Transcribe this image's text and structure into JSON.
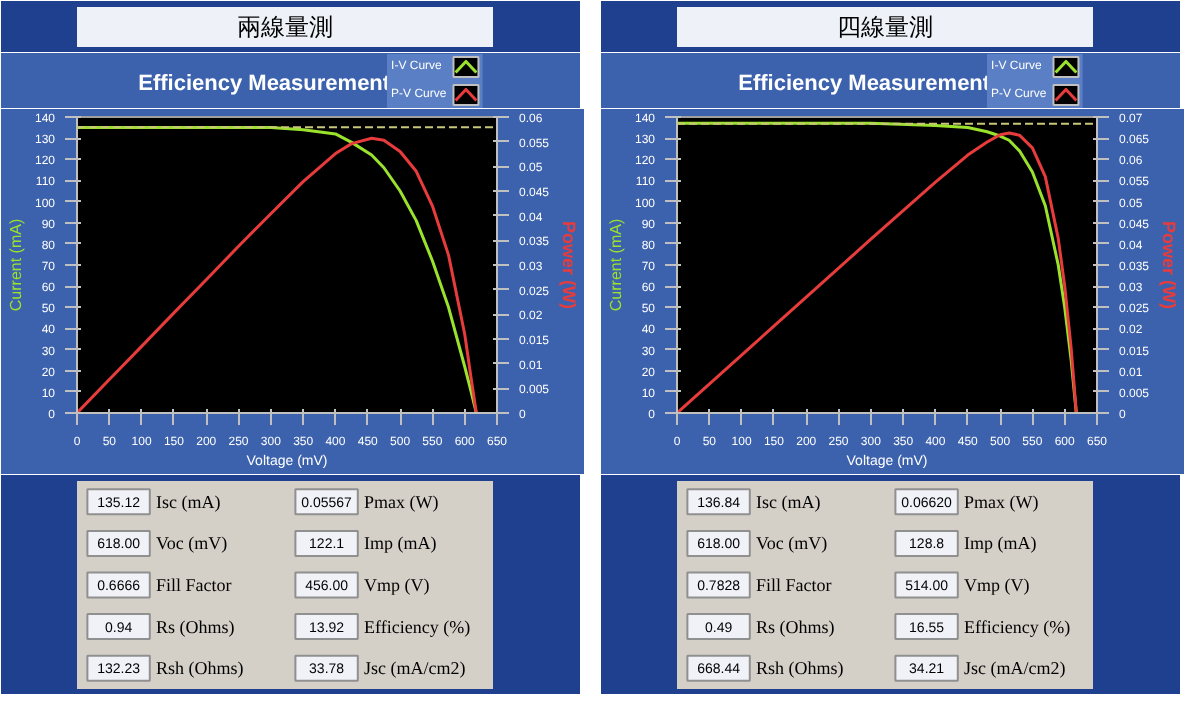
{
  "chart_data": [
    {
      "type": "line",
      "title": "兩線量測",
      "subtitle": "Efficiency Measurement",
      "xlabel": "Voltage (mV)",
      "ylabel": "Current (mA)",
      "y2label": "Power (W)",
      "xlim": [
        0,
        650
      ],
      "xticks": [
        0,
        50,
        100,
        150,
        200,
        250,
        300,
        350,
        400,
        450,
        500,
        550,
        600,
        650
      ],
      "ylim": [
        0,
        140
      ],
      "yticks": [
        0,
        10,
        20,
        30,
        40,
        50,
        60,
        70,
        80,
        90,
        100,
        110,
        120,
        130,
        140
      ],
      "y2lim": [
        0,
        0.06
      ],
      "y2ticks": [
        0,
        0.005,
        0.01,
        0.015,
        0.02,
        0.025,
        0.03,
        0.035,
        0.04,
        0.045,
        0.05,
        0.055,
        0.06
      ],
      "legend": "top right",
      "grid": false,
      "ref_lines": [
        {
          "axis": "y",
          "value": 135.12,
          "color": "#c8c878",
          "line_style": "dashed"
        }
      ],
      "series": [
        {
          "name": "I-V Curve",
          "color": "#9be22d",
          "x": [
            0,
            50,
            100,
            150,
            200,
            250,
            300,
            350,
            400,
            425,
            456,
            475,
            500,
            525,
            550,
            575,
            600,
            610,
            618
          ],
          "values": [
            135,
            135,
            135,
            135,
            135,
            135,
            135,
            134,
            132,
            128,
            122,
            116,
            105,
            91,
            72,
            50,
            22,
            10,
            0
          ]
        },
        {
          "name": "P-V Curve",
          "color": "#e83c3c",
          "axis": "y2",
          "x": [
            0,
            50,
            100,
            150,
            200,
            250,
            300,
            350,
            400,
            425,
            456,
            475,
            500,
            525,
            550,
            575,
            600,
            610,
            618
          ],
          "values": [
            0,
            0.0068,
            0.0135,
            0.0203,
            0.027,
            0.0338,
            0.0404,
            0.0469,
            0.0526,
            0.0546,
            0.0557,
            0.0553,
            0.053,
            0.049,
            0.042,
            0.032,
            0.016,
            0.007,
            0
          ]
        }
      ],
      "annotations": [
        "135.12",
        "Isc (mA)",
        "0.05567",
        "Pmax (W)",
        "618.00",
        "Voc (mV)",
        "122.1",
        "Imp (mA)",
        "0.6666",
        "Fill Factor",
        "456.00",
        "Vmp (V)",
        "0.94",
        "Rs (Ohms)",
        "13.92",
        "Efficiency (%)",
        "132.23",
        "Rsh (Ohms)",
        "33.78",
        "Jsc (mA/cm2)"
      ]
    },
    {
      "type": "line",
      "title": "四線量測",
      "subtitle": "Efficiency Measurement",
      "xlabel": "Voltage (mV)",
      "ylabel": "Current (mA)",
      "y2label": "Power (W)",
      "xlim": [
        0,
        650
      ],
      "xticks": [
        0,
        50,
        100,
        150,
        200,
        250,
        300,
        350,
        400,
        450,
        500,
        550,
        600,
        650
      ],
      "ylim": [
        0,
        140
      ],
      "yticks": [
        0,
        10,
        20,
        30,
        40,
        50,
        60,
        70,
        80,
        90,
        100,
        110,
        120,
        130,
        140
      ],
      "y2lim": [
        0,
        0.07
      ],
      "y2ticks": [
        0,
        0.005,
        0.01,
        0.015,
        0.02,
        0.025,
        0.03,
        0.035,
        0.04,
        0.045,
        0.05,
        0.055,
        0.06,
        0.065,
        0.07
      ],
      "legend": "top right",
      "grid": false,
      "ref_lines": [
        {
          "axis": "y",
          "value": 136.84,
          "color": "#c8c878",
          "line_style": "dashed"
        }
      ],
      "series": [
        {
          "name": "I-V Curve",
          "color": "#9be22d",
          "x": [
            0,
            100,
            200,
            300,
            400,
            450,
            480,
            500,
            514,
            530,
            550,
            570,
            590,
            600,
            610,
            618
          ],
          "values": [
            137,
            137,
            137,
            137,
            136,
            135,
            133,
            131,
            129,
            124,
            114,
            98,
            70,
            50,
            25,
            0
          ]
        },
        {
          "name": "P-V Curve",
          "color": "#e83c3c",
          "axis": "y2",
          "x": [
            0,
            100,
            200,
            300,
            400,
            450,
            480,
            500,
            514,
            530,
            550,
            570,
            590,
            600,
            610,
            618
          ],
          "values": [
            0,
            0.0137,
            0.0274,
            0.0411,
            0.0546,
            0.061,
            0.0641,
            0.0658,
            0.0662,
            0.0657,
            0.0627,
            0.0559,
            0.0413,
            0.03,
            0.0153,
            0
          ]
        }
      ],
      "annotations": [
        "136.84",
        "Isc (mA)",
        "0.06620",
        "Pmax (W)",
        "618.00",
        "Voc (mV)",
        "128.8",
        "Imp (mA)",
        "0.7828",
        "Fill Factor",
        "514.00",
        "Vmp (V)",
        "0.49",
        "Rs (Ohms)",
        "16.55",
        "Efficiency (%)",
        "668.44",
        "Rsh (Ohms)",
        "34.21",
        "Jsc (mA/cm2)"
      ]
    }
  ]
}
